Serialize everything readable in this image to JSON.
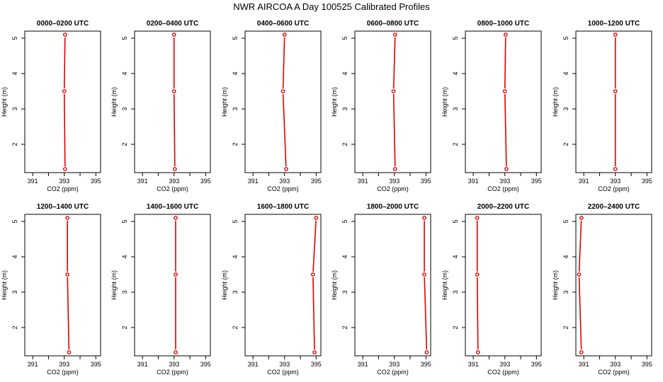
{
  "page": {
    "title": "NWR AIRCOA A  Day 100525  Calibrated Profiles"
  },
  "style": {
    "line_color": "#e00000",
    "point_color": "#e00000",
    "axis_color": "#000000"
  },
  "chart_data": [
    {
      "type": "line",
      "title": "0000–0200 UTC",
      "xlabel": "CO2 (ppm)",
      "ylabel": "Height (m)",
      "xlim": [
        390.5,
        395.3
      ],
      "ylim": [
        1.2,
        5.2
      ],
      "xticks": [
        391,
        392,
        393,
        394,
        395
      ],
      "xtick_labels": [
        "391",
        "",
        "393",
        "",
        "395"
      ],
      "yticks": [
        2,
        3,
        4,
        5
      ],
      "series": [
        {
          "x": [
            393.05,
            393.0,
            393.05
          ],
          "y": [
            1.3,
            3.5,
            5.1
          ]
        }
      ]
    },
    {
      "type": "line",
      "title": "0200–0400 UTC",
      "xlabel": "CO2 (ppm)",
      "ylabel": "Height (m)",
      "xlim": [
        390.5,
        395.3
      ],
      "ylim": [
        1.2,
        5.2
      ],
      "xticks": [
        391,
        392,
        393,
        394,
        395
      ],
      "xtick_labels": [
        "391",
        "",
        "393",
        "",
        "395"
      ],
      "yticks": [
        2,
        3,
        4,
        5
      ],
      "series": [
        {
          "x": [
            393.05,
            393.0,
            393.0
          ],
          "y": [
            1.3,
            3.5,
            5.1
          ]
        }
      ]
    },
    {
      "type": "line",
      "title": "0400–0600 UTC",
      "xlabel": "CO2 (ppm)",
      "ylabel": "Height (m)",
      "xlim": [
        390.5,
        395.3
      ],
      "ylim": [
        1.2,
        5.2
      ],
      "xticks": [
        391,
        392,
        393,
        394,
        395
      ],
      "xtick_labels": [
        "391",
        "",
        "393",
        "",
        "395"
      ],
      "yticks": [
        2,
        3,
        4,
        5
      ],
      "series": [
        {
          "x": [
            393.1,
            392.9,
            393.0
          ],
          "y": [
            1.3,
            3.5,
            5.1
          ]
        }
      ]
    },
    {
      "type": "line",
      "title": "0600–0800 UTC",
      "xlabel": "CO2 (ppm)",
      "ylabel": "Height (m)",
      "xlim": [
        390.5,
        395.3
      ],
      "ylim": [
        1.2,
        5.2
      ],
      "xticks": [
        391,
        392,
        393,
        394,
        395
      ],
      "xtick_labels": [
        "391",
        "",
        "393",
        "",
        "395"
      ],
      "yticks": [
        2,
        3,
        4,
        5
      ],
      "series": [
        {
          "x": [
            393.05,
            392.95,
            393.05
          ],
          "y": [
            1.3,
            3.5,
            5.1
          ]
        }
      ]
    },
    {
      "type": "line",
      "title": "0800–1000 UTC",
      "xlabel": "CO2 (ppm)",
      "ylabel": "Height (m)",
      "xlim": [
        390.5,
        395.3
      ],
      "ylim": [
        1.2,
        5.2
      ],
      "xticks": [
        391,
        392,
        393,
        394,
        395
      ],
      "xtick_labels": [
        "391",
        "",
        "393",
        "",
        "395"
      ],
      "yticks": [
        2,
        3,
        4,
        5
      ],
      "series": [
        {
          "x": [
            393.1,
            393.0,
            393.05
          ],
          "y": [
            1.3,
            3.5,
            5.1
          ]
        }
      ]
    },
    {
      "type": "line",
      "title": "1000–1200 UTC",
      "xlabel": "CO2 (ppm)",
      "ylabel": "Height (m)",
      "xlim": [
        390.5,
        395.3
      ],
      "ylim": [
        1.2,
        5.2
      ],
      "xticks": [
        391,
        392,
        393,
        394,
        395
      ],
      "xtick_labels": [
        "391",
        "",
        "393",
        "",
        "395"
      ],
      "yticks": [
        2,
        3,
        4,
        5
      ],
      "series": [
        {
          "x": [
            393.0,
            393.0,
            393.0
          ],
          "y": [
            1.3,
            3.5,
            5.1
          ]
        }
      ]
    },
    {
      "type": "line",
      "title": "1200–1400 UTC",
      "xlabel": "CO2 (ppm)",
      "ylabel": "Height (m)",
      "xlim": [
        390.5,
        395.3
      ],
      "ylim": [
        1.2,
        5.2
      ],
      "xticks": [
        391,
        392,
        393,
        394,
        395
      ],
      "xtick_labels": [
        "391",
        "",
        "393",
        "",
        "395"
      ],
      "yticks": [
        2,
        3,
        4,
        5
      ],
      "series": [
        {
          "x": [
            393.3,
            393.2,
            393.2
          ],
          "y": [
            1.3,
            3.5,
            5.1
          ]
        }
      ]
    },
    {
      "type": "line",
      "title": "1400–1600 UTC",
      "xlabel": "CO2 (ppm)",
      "ylabel": "Height (m)",
      "xlim": [
        390.5,
        395.3
      ],
      "ylim": [
        1.2,
        5.2
      ],
      "xticks": [
        391,
        392,
        393,
        394,
        395
      ],
      "xtick_labels": [
        "391",
        "",
        "393",
        "",
        "395"
      ],
      "yticks": [
        2,
        3,
        4,
        5
      ],
      "series": [
        {
          "x": [
            393.1,
            393.1,
            393.1
          ],
          "y": [
            1.3,
            3.5,
            5.1
          ]
        }
      ]
    },
    {
      "type": "line",
      "title": "1600–1800 UTC",
      "xlabel": "CO2 (ppm)",
      "ylabel": "Height (m)",
      "xlim": [
        390.5,
        395.3
      ],
      "ylim": [
        1.2,
        5.2
      ],
      "xticks": [
        391,
        392,
        393,
        394,
        395
      ],
      "xtick_labels": [
        "391",
        "",
        "393",
        "",
        "395"
      ],
      "yticks": [
        2,
        3,
        4,
        5
      ],
      "series": [
        {
          "x": [
            394.9,
            394.8,
            395.0
          ],
          "y": [
            1.3,
            3.5,
            5.1
          ]
        }
      ]
    },
    {
      "type": "line",
      "title": "1800–2000 UTC",
      "xlabel": "CO2 (ppm)",
      "ylabel": "Height (m)",
      "xlim": [
        390.5,
        395.3
      ],
      "ylim": [
        1.2,
        5.2
      ],
      "xticks": [
        391,
        392,
        393,
        394,
        395
      ],
      "xtick_labels": [
        "391",
        "",
        "393",
        "",
        "395"
      ],
      "yticks": [
        2,
        3,
        4,
        5
      ],
      "series": [
        {
          "x": [
            395.05,
            394.9,
            394.9
          ],
          "y": [
            1.3,
            3.5,
            5.1
          ]
        }
      ]
    },
    {
      "type": "line",
      "title": "2000–2200 UTC",
      "xlabel": "CO2 (ppm)",
      "ylabel": "Height (m)",
      "xlim": [
        390.5,
        395.3
      ],
      "ylim": [
        1.2,
        5.2
      ],
      "xticks": [
        391,
        392,
        393,
        394,
        395
      ],
      "xtick_labels": [
        "391",
        "",
        "393",
        "",
        "395"
      ],
      "yticks": [
        2,
        3,
        4,
        5
      ],
      "series": [
        {
          "x": [
            391.3,
            391.25,
            391.25
          ],
          "y": [
            1.3,
            3.5,
            5.1
          ]
        }
      ]
    },
    {
      "type": "line",
      "title": "2200–2400 UTC",
      "xlabel": "CO2 (ppm)",
      "ylabel": "Height (m)",
      "xlim": [
        390.5,
        395.3
      ],
      "ylim": [
        1.2,
        5.2
      ],
      "xticks": [
        391,
        392,
        393,
        394,
        395
      ],
      "xtick_labels": [
        "391",
        "",
        "393",
        "",
        "395"
      ],
      "yticks": [
        2,
        3,
        4,
        5
      ],
      "series": [
        {
          "x": [
            390.85,
            390.7,
            390.85
          ],
          "y": [
            1.3,
            3.5,
            5.1
          ]
        }
      ]
    }
  ]
}
